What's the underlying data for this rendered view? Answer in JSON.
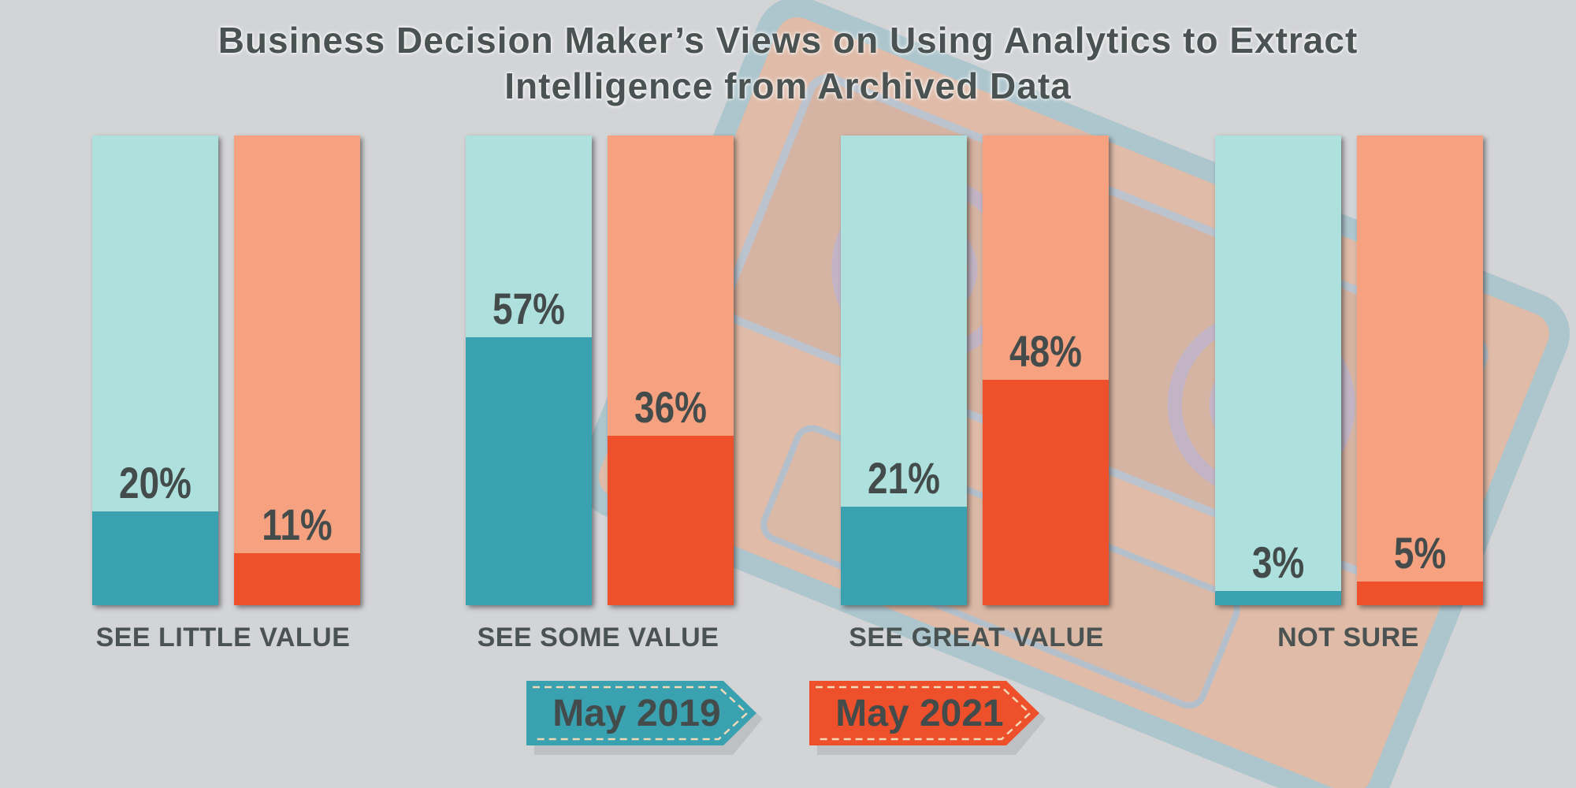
{
  "chart_data": {
    "type": "bar",
    "title_lines": [
      "Business Decision Maker’s Views on Using Analytics to Extract",
      "Intelligence from Archived Data"
    ],
    "categories": [
      "SEE LITTLE VALUE",
      "SEE SOME VALUE",
      "SEE GREAT VALUE",
      "NOT SURE"
    ],
    "series": [
      {
        "name": "May 2019",
        "values": [
          20,
          57,
          21,
          3
        ],
        "labels": [
          "20%",
          "57%",
          "21%",
          "3%"
        ],
        "color": "#3aa1b0",
        "light_color": "#aee0dd"
      },
      {
        "name": "May 2021",
        "values": [
          11,
          36,
          48,
          5
        ],
        "labels": [
          "11%",
          "36%",
          "48%",
          "5%"
        ],
        "color": "#ee502c",
        "light_color": "#f6a281"
      }
    ],
    "ylim": [
      0,
      100
    ],
    "unit": "%",
    "legend_position": "bottom-center"
  }
}
